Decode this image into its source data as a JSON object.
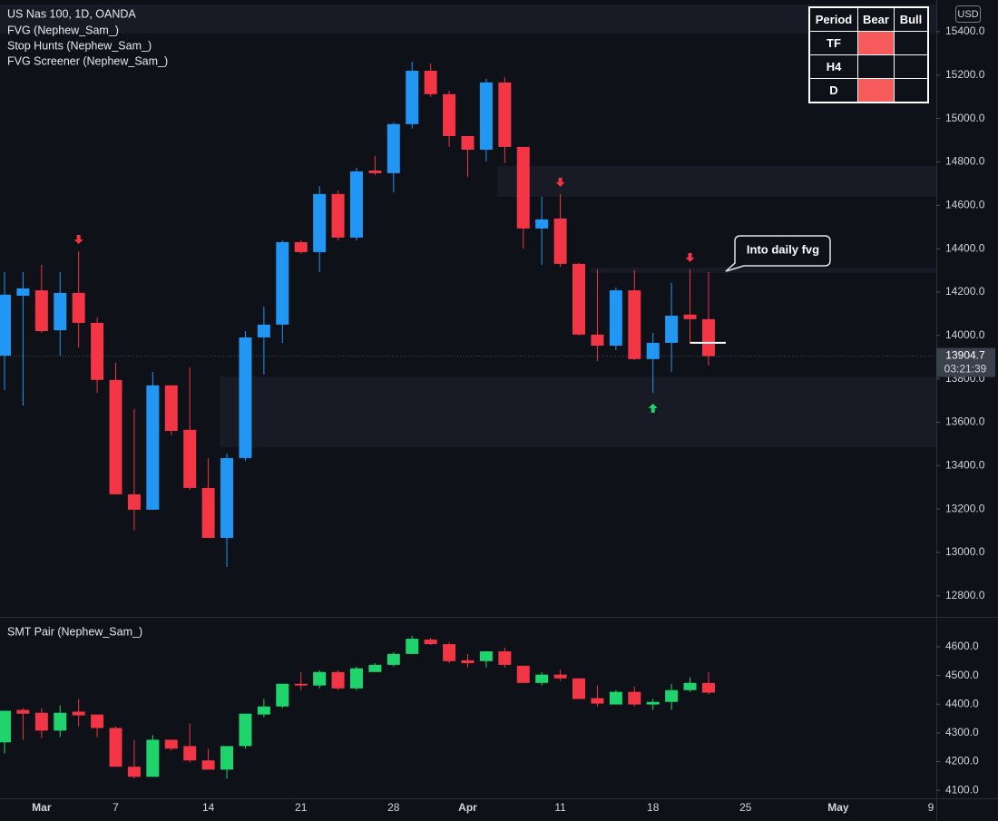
{
  "chart_data": [
    {
      "type": "candlestick",
      "title": "US Nas 100, 1D, OANDA",
      "indicators": [
        "FVG (Nephew_Sam_)",
        "Stop Hunts (Nephew_Sam_)",
        "FVG Screener (Nephew_Sam_)"
      ],
      "currency": "USD",
      "up_color": "#2196f3",
      "down_color": "#f23645",
      "open": [
        13907,
        14183,
        14208,
        14024,
        14196,
        14058,
        13795,
        13268,
        13197,
        13770,
        13565,
        13297,
        13067,
        13435,
        13991,
        14050,
        14430,
        14384,
        14652,
        14451,
        14760,
        14748,
        14974,
        15220,
        15112,
        14919,
        14856,
        15166,
        14869,
        14493,
        14539,
        14330,
        14004,
        13953,
        14208,
        13891,
        13966,
        14096,
        14075,
        null,
        null,
        null,
        null,
        null,
        null,
        null,
        null,
        null,
        null,
        null,
        null
      ],
      "high": [
        14292,
        14292,
        14325,
        14292,
        14388,
        14083,
        13874,
        13661,
        13832,
        13770,
        13853,
        13435,
        13456,
        14020,
        14133,
        14438,
        14438,
        14689,
        14668,
        14773,
        14827,
        14982,
        15262,
        15254,
        15128,
        14919,
        15183,
        15191,
        14869,
        14639,
        14652,
        14334,
        14305,
        14221,
        14300,
        14012,
        14242,
        14305,
        14292,
        null,
        null,
        null,
        null,
        null,
        null,
        null,
        null,
        null,
        null,
        null,
        null
      ],
      "low": [
        13749,
        13677,
        14012,
        13907,
        13945,
        13736,
        13268,
        13100,
        13197,
        13540,
        13289,
        13067,
        12933,
        13422,
        13820,
        13966,
        14376,
        14292,
        14438,
        14438,
        14739,
        14660,
        14953,
        15099,
        14869,
        14731,
        14802,
        14794,
        14401,
        14325,
        14317,
        14000,
        13882,
        13932,
        13887,
        13736,
        13832,
        13966,
        13861,
        null,
        null,
        null,
        null,
        null,
        null,
        null,
        null,
        null,
        null,
        null,
        null
      ],
      "close": [
        14188,
        14217,
        14020,
        14196,
        14058,
        13795,
        13268,
        13197,
        13770,
        13560,
        13297,
        13067,
        13435,
        13991,
        14050,
        14430,
        14384,
        14652,
        14451,
        14756,
        14748,
        14974,
        15220,
        15112,
        14919,
        14856,
        15166,
        14869,
        14493,
        14535,
        14330,
        14004,
        13953,
        14208,
        13891,
        13966,
        14091,
        14075,
        13904.7,
        null,
        null,
        null,
        null,
        null,
        null,
        null,
        null,
        null,
        null,
        null,
        null
      ],
      "zones": [
        {
          "start": 0,
          "low": 15392,
          "high": 15525
        },
        {
          "start": 27,
          "low": 14639,
          "high": 14781
        },
        {
          "start": 32,
          "low": 14288,
          "high": 14313
        },
        {
          "start": 12,
          "low": 13485,
          "high": 13811
        }
      ],
      "markers": [
        {
          "index": 4,
          "direction": "down"
        },
        {
          "index": 30,
          "direction": "down"
        },
        {
          "index": 37,
          "direction": "down"
        },
        {
          "index": 35,
          "direction": "up"
        }
      ],
      "levels": [
        {
          "start": 37,
          "end": 38,
          "value": 13966
        }
      ],
      "annotation": "Into daily fvg",
      "last_price": 13904.7,
      "countdown": "03:21:39",
      "ylim": [
        12703,
        15546
      ],
      "yticks": [
        {
          "value": 12800,
          "label": "12800.0"
        },
        {
          "value": 13000,
          "label": "13000.0"
        },
        {
          "value": 13200,
          "label": "13200.0"
        },
        {
          "value": 13400,
          "label": "13400.0"
        },
        {
          "value": 13600,
          "label": "13600.0"
        },
        {
          "value": 13800,
          "label": "13800.0"
        },
        {
          "value": 14000,
          "label": "14000.0"
        },
        {
          "value": 14200,
          "label": "14200.0"
        },
        {
          "value": 14400,
          "label": "14400.0"
        },
        {
          "value": 14600,
          "label": "14600.0"
        },
        {
          "value": 14800,
          "label": "14800.0"
        },
        {
          "value": 15000,
          "label": "15000.0"
        },
        {
          "value": 15200,
          "label": "15200.0"
        },
        {
          "value": 15400,
          "label": "15400.0"
        }
      ]
    },
    {
      "type": "candlestick",
      "title": "SMT Pair (Nephew_Sam_)",
      "up_color": "#1fd46c",
      "down_color": "#f23645",
      "categories": [
        null,
        null,
        "Mar",
        null,
        null,
        null,
        "7",
        null,
        null,
        null,
        null,
        "14",
        null,
        null,
        null,
        null,
        "21",
        null,
        null,
        null,
        null,
        "28",
        null,
        null,
        null,
        "Apr",
        null,
        null,
        null,
        null,
        "11",
        null,
        null,
        null,
        null,
        "18",
        null,
        null,
        null,
        null,
        "25",
        null,
        null,
        null,
        null,
        "May",
        null,
        null,
        null,
        null,
        "9"
      ],
      "open": [
        4267,
        4380,
        4370,
        4308,
        4374,
        4364,
        4317,
        4182,
        4147,
        4276,
        4254,
        4204,
        4172,
        4254,
        4364,
        4392,
        4471,
        4465,
        4512,
        4455,
        4512,
        4537,
        4575,
        4625,
        4609,
        4553,
        4550,
        4584,
        4534,
        4474,
        4503,
        4490,
        4421,
        4399,
        4443,
        4399,
        4408,
        4449,
        4474,
        null,
        null,
        null,
        null,
        null,
        null,
        null,
        null,
        null,
        null,
        null,
        null
      ],
      "high": [
        4377,
        4386,
        4386,
        4396,
        4418,
        4364,
        4323,
        4276,
        4292,
        4276,
        4333,
        4245,
        4254,
        4367,
        4418,
        4471,
        4512,
        4518,
        4518,
        4531,
        4543,
        4581,
        4638,
        4631,
        4616,
        4575,
        4584,
        4597,
        4534,
        4512,
        4521,
        4490,
        4465,
        4449,
        4462,
        4418,
        4471,
        4493,
        4512,
        null,
        null,
        null,
        null,
        null,
        null,
        null,
        null,
        null,
        null,
        null,
        null
      ],
      "low": [
        4229,
        4276,
        4282,
        4286,
        4323,
        4286,
        4182,
        4141,
        4147,
        4238,
        4197,
        4172,
        4141,
        4245,
        4355,
        4386,
        4449,
        4455,
        4449,
        4449,
        4512,
        4531,
        4575,
        4606,
        4543,
        4528,
        4528,
        4528,
        4474,
        4465,
        4481,
        4418,
        4392,
        4399,
        4392,
        4380,
        4380,
        4443,
        4433,
        null,
        null,
        null,
        null,
        null,
        null,
        null,
        null,
        null,
        null,
        null,
        null
      ],
      "close": [
        4377,
        4367,
        4308,
        4370,
        4361,
        4317,
        4182,
        4147,
        4276,
        4245,
        4204,
        4172,
        4254,
        4367,
        4392,
        4471,
        4465,
        4512,
        4455,
        4525,
        4537,
        4575,
        4628,
        4609,
        4550,
        4543,
        4584,
        4537,
        4474,
        4503,
        4490,
        4418,
        4402,
        4443,
        4399,
        4408,
        4449,
        4474,
        4440,
        null,
        null,
        null,
        null,
        null,
        null,
        null,
        null,
        null,
        null,
        null,
        null
      ],
      "ylim": [
        4072,
        4701
      ],
      "yticks": [
        {
          "value": 4100,
          "label": "4100.0"
        },
        {
          "value": 4200,
          "label": "4200.0"
        },
        {
          "value": 4300,
          "label": "4300.0"
        },
        {
          "value": 4400,
          "label": "4400.0"
        },
        {
          "value": 4500,
          "label": "4500.0"
        },
        {
          "value": 4600,
          "label": "4600.0"
        }
      ]
    }
  ],
  "table": {
    "header": [
      "Period",
      "Bear",
      "Bull"
    ],
    "rows": [
      {
        "label": "TF",
        "bear": true,
        "bull": false
      },
      {
        "label": "H4",
        "bear": false,
        "bull": false
      },
      {
        "label": "D",
        "bear": true,
        "bull": false
      }
    ],
    "fill_color": "#f65a5a"
  }
}
